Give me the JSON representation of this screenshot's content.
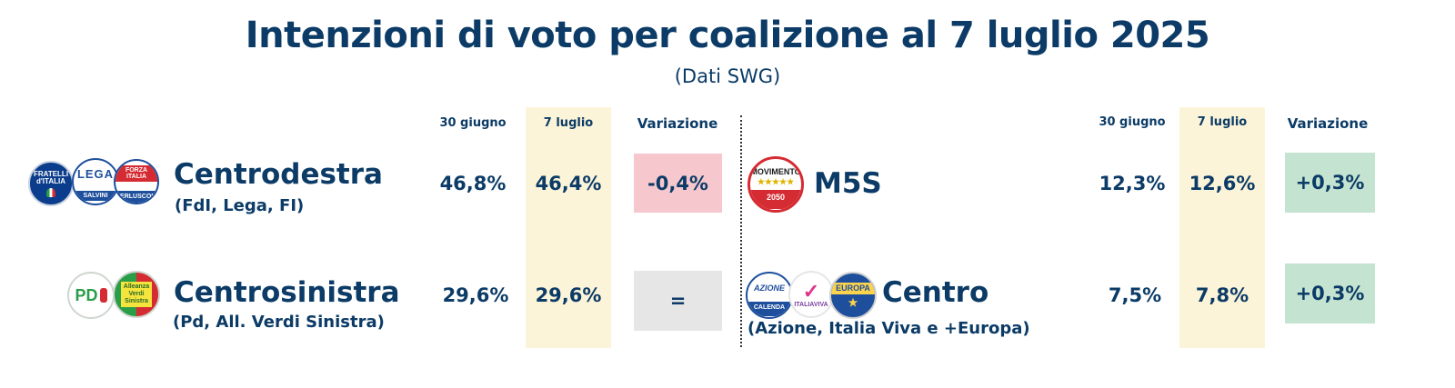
{
  "title": "Intenzioni di voto per coalizione al 7 luglio 2025",
  "subtitle": "(Dati SWG)",
  "left_headers": {
    "prev": "30 giugno",
    "curr": "7 luglio",
    "change": "Variazione"
  },
  "right_headers": {
    "prev": "30 giugno",
    "curr": "7 luglio",
    "change": "Variazione"
  },
  "left_rows": [
    {
      "name": "Centrodestra",
      "parties": "(FdI, Lega, FI)",
      "prev": "46,8%",
      "curr": "46,4%",
      "change": "-0,4%",
      "change_type": "negative"
    },
    {
      "name": "Centrosinistra",
      "parties": "(Pd, All. Verdi Sinistra)",
      "prev": "29,6%",
      "curr": "29,6%",
      "change": "=",
      "change_type": "equal"
    }
  ],
  "right_rows": [
    {
      "name": "M5S",
      "parties": "",
      "prev": "12,3%",
      "curr": "12,6%",
      "change": "+0,3%",
      "change_type": "positive"
    },
    {
      "name": "Centro",
      "parties": "(Azione, Italia Viva e +Europa)",
      "prev": "7,5%",
      "curr": "7,8%",
      "change": "+0,3%",
      "change_type": "positive"
    }
  ],
  "logos": {
    "fdi": "FRATELLI d'ITALIA",
    "lega": "LEGA",
    "lega_sub": "SALVINI",
    "fi": "FORZA ITALIA",
    "fi_sub": "BERLUSCONI",
    "pd": "PD",
    "avs": "Alleanza Verdi Sinistra",
    "m5s": "MOVIMENTO",
    "m5s_sub": "2050",
    "azione": "AZIONE",
    "azione_sub": "CALENDA",
    "iv": "ITALIAVIVA",
    "europa": "EUROPA"
  },
  "colors": {
    "text": "#0b3b66",
    "highlight_column": "#fcf4d8",
    "negative": "#f6c8cd",
    "equal": "#e6e6e6",
    "positive": "#c4e3d0"
  },
  "chart_data": {
    "type": "table",
    "title": "Intenzioni di voto per coalizione al 7 luglio 2025",
    "subtitle": "(Dati SWG)",
    "columns": [
      "30 giugno",
      "7 luglio",
      "Variazione"
    ],
    "rows": [
      {
        "coalition": "Centrodestra",
        "parties": "(FdI, Lega, FI)",
        "values": [
          46.8,
          46.4,
          -0.4
        ]
      },
      {
        "coalition": "Centrosinistra",
        "parties": "(Pd, All. Verdi Sinistra)",
        "values": [
          29.6,
          29.6,
          0
        ]
      },
      {
        "coalition": "M5S",
        "parties": "",
        "values": [
          12.3,
          12.6,
          0.3
        ]
      },
      {
        "coalition": "Centro",
        "parties": "(Azione, Italia Viva e +Europa)",
        "values": [
          7.5,
          7.8,
          0.3
        ]
      }
    ]
  }
}
